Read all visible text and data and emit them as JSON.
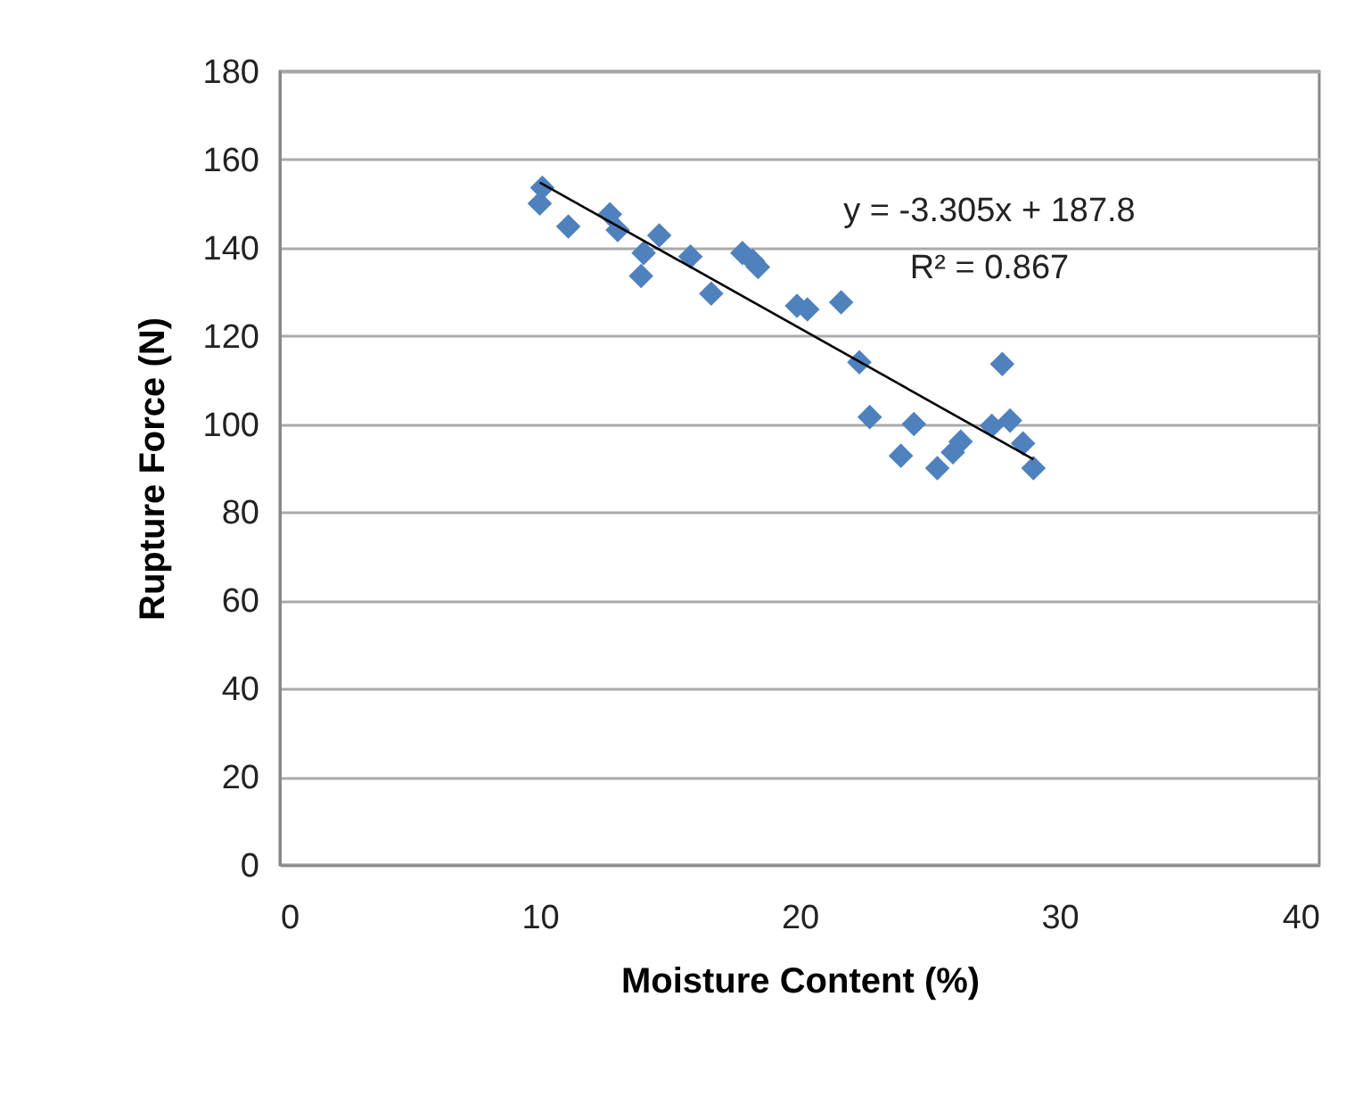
{
  "chart_data": {
    "type": "scatter",
    "xlabel": "Moisture Content (%)",
    "ylabel": "Rupture Force (N)",
    "annotations": [
      "y = -3.305x + 187.8",
      "R² = 0.867"
    ],
    "xlim": [
      0,
      40
    ],
    "xticks": [
      0,
      10,
      20,
      30,
      40
    ],
    "ylim": [
      0,
      180
    ],
    "yticks": [
      0,
      20,
      40,
      60,
      80,
      100,
      120,
      140,
      160,
      180
    ],
    "grid": "y",
    "marker": "diamond",
    "series": [
      {
        "color": "#4f81bd",
        "x": [
          10.1,
          10.0,
          11.1,
          12.7,
          13.0,
          14.6,
          14.0,
          13.9,
          15.8,
          16.6,
          17.8,
          18.4,
          18.2,
          19.9,
          20.3,
          21.6,
          22.3,
          22.7,
          24.4,
          23.9,
          25.3,
          25.9,
          26.2,
          27.4,
          27.8,
          28.1,
          28.6,
          29.0
        ],
        "values": [
          153.6,
          150,
          144.8,
          147.6,
          144,
          142.8,
          138.8,
          133.6,
          138,
          129.6,
          138.8,
          135.6,
          137,
          126.8,
          126,
          127.6,
          114,
          101.6,
          100,
          92.8,
          90,
          93.6,
          96,
          99.6,
          113.6,
          100.8,
          95.6,
          90
        ]
      },
      {
        "type": "line",
        "color": "#000000",
        "x": [
          10,
          29
        ],
        "values": [
          154.8,
          92.0
        ],
        "marker": "none"
      }
    ]
  }
}
